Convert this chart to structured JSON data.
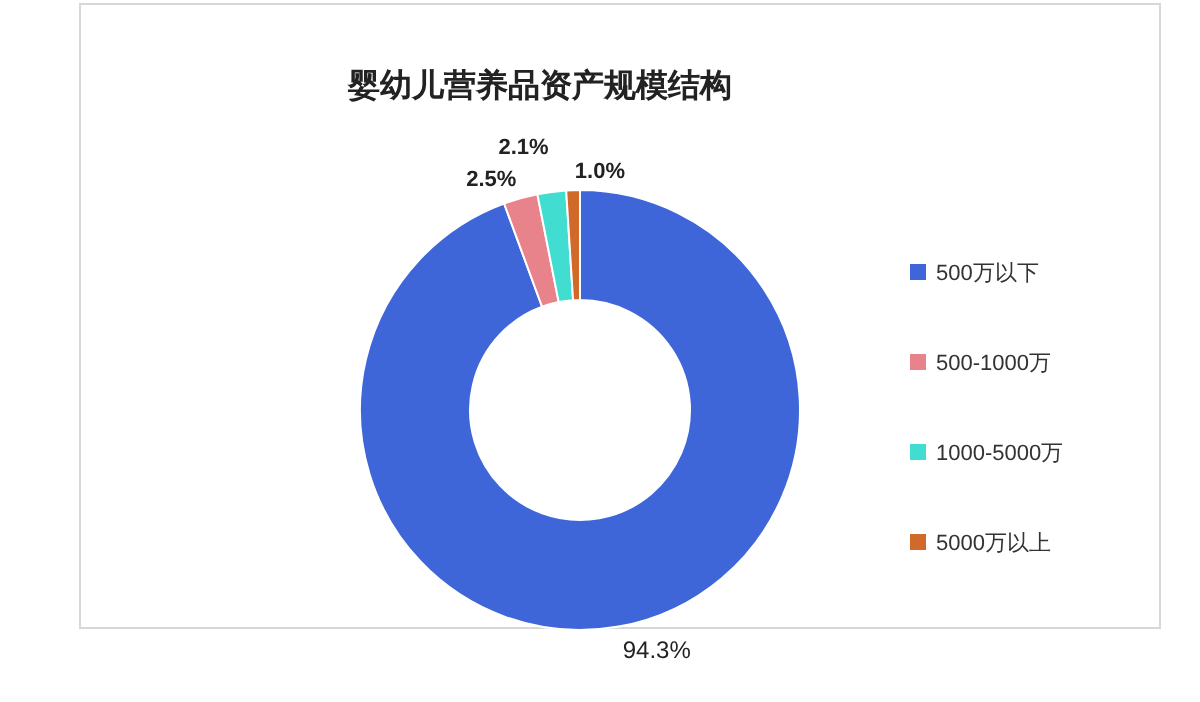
{
  "chart_data": {
    "type": "donut",
    "title": "婴幼儿营养品资产规模结构",
    "categories": [
      "500万以下",
      "500-1000万",
      "1000-5000万",
      "5000万以上"
    ],
    "values": [
      94.3,
      2.5,
      2.1,
      1.0
    ],
    "colors": [
      "#3f66d8",
      "#e8838c",
      "#40ddd0",
      "#d0692a"
    ],
    "value_labels": [
      "94.3%",
      "2.5%",
      "2.1%",
      "1.0%"
    ],
    "legend": "right"
  }
}
